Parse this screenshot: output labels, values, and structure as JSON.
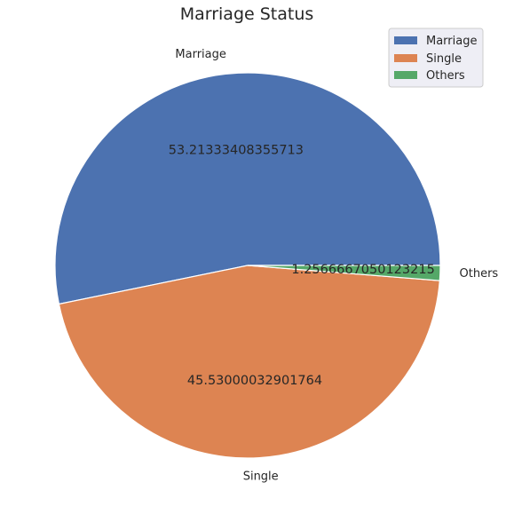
{
  "chart_data": {
    "type": "pie",
    "title": "Marriage Status",
    "categories": [
      "Marriage",
      "Single",
      "Others"
    ],
    "values": [
      53.21333408355713,
      45.53000032901764,
      1.2566667050123215
    ],
    "value_labels": [
      "53.21333408355713",
      "45.53000032901764",
      "1.2566667050123215"
    ],
    "colors": [
      "#4c72b0",
      "#dd8452",
      "#55a868"
    ],
    "legend": {
      "position": "top-right",
      "entries": [
        "Marriage",
        "Single",
        "Others"
      ]
    },
    "start_angle_deg": 0,
    "direction": "counterclockwise"
  }
}
